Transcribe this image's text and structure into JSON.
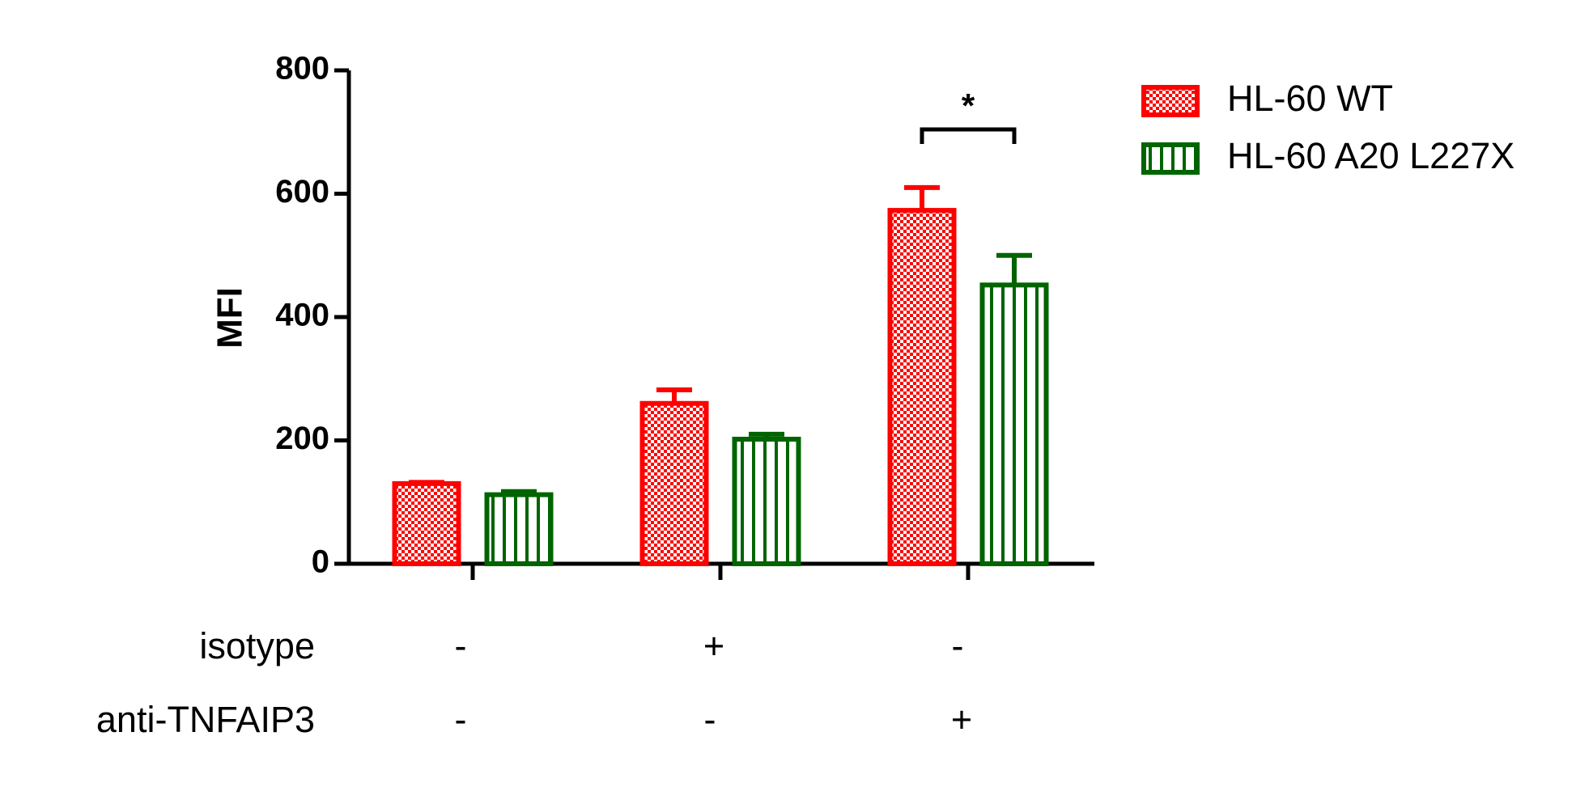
{
  "chart_data": {
    "type": "bar",
    "ylabel": "MFI",
    "categories": [
      null,
      null,
      null
    ],
    "series": [
      {
        "name": "HL-60 WT",
        "color": "#ff0000",
        "pattern": "checker",
        "values": [
          130,
          260,
          573
        ],
        "errors": [
          2,
          22,
          37
        ]
      },
      {
        "name": "HL-60 A20 L227X",
        "color": "#006400",
        "pattern": "vertical-stripes",
        "values": [
          112,
          202,
          452
        ],
        "errors": [
          5,
          8,
          48
        ]
      }
    ],
    "ylim": [
      0,
      800
    ],
    "yticks": [
      0,
      200,
      400,
      600,
      800
    ],
    "conditions": [
      {
        "name": "isotype",
        "values": [
          "-",
          "+",
          "-"
        ]
      },
      {
        "name": "anti-TNFAIP3",
        "values": [
          "-",
          "-",
          "+"
        ]
      }
    ],
    "annotations": [
      {
        "text": "*",
        "category": 2
      }
    ],
    "legend": "top-right"
  }
}
